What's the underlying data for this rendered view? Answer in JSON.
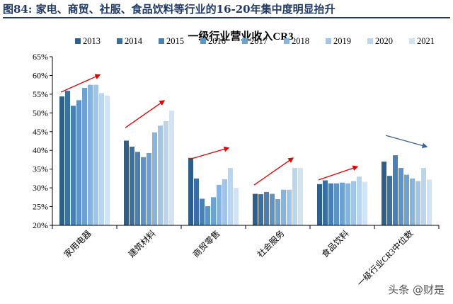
{
  "figure_title": "图84: 家电、商贸、社服、食品饮料等行业的16-20年集中度明显抬升",
  "watermark": "头条 @财是",
  "colors": [
    "#2e5f8a",
    "#3b6fa0",
    "#4a7fb3",
    "#5e93c5",
    "#6ea2d2",
    "#86b4de",
    "#a2c4e6",
    "#bcd5ee",
    "#d2e3f4"
  ],
  "arrow_color": "#e00000",
  "arrow_color_down": "#3a5f9a",
  "chart_data": {
    "type": "bar",
    "title": "一级行业营业收入CR3",
    "ylim": [
      0.2,
      0.65
    ],
    "yticks": [
      "20%",
      "25%",
      "30%",
      "35%",
      "40%",
      "45%",
      "50%",
      "55%",
      "60%",
      "65%"
    ],
    "legend_position": "top",
    "categories": [
      "家用电器",
      "建筑材料",
      "商贸零售",
      "社会服务",
      "食品饮料",
      "一级行业CR3中位数"
    ],
    "series": [
      {
        "name": "2013",
        "values": [
          0.544,
          0.426,
          0.38,
          0.284,
          0.31,
          0.37
        ]
      },
      {
        "name": "2014",
        "values": [
          0.559,
          0.41,
          0.325,
          0.283,
          0.32,
          0.332
        ]
      },
      {
        "name": "2015",
        "values": [
          0.519,
          0.396,
          0.271,
          0.289,
          0.312,
          0.387
        ]
      },
      {
        "name": "2016",
        "values": [
          0.534,
          0.382,
          0.251,
          0.284,
          0.312,
          0.353
        ]
      },
      {
        "name": "2017",
        "values": [
          0.567,
          0.393,
          0.275,
          0.27,
          0.314,
          0.335
        ]
      },
      {
        "name": "2018",
        "values": [
          0.575,
          0.448,
          0.308,
          0.295,
          0.312,
          0.325
        ]
      },
      {
        "name": "2019",
        "values": [
          0.575,
          0.466,
          0.323,
          0.295,
          0.318,
          0.318
        ]
      },
      {
        "name": "2020",
        "values": [
          0.553,
          0.478,
          0.353,
          0.353,
          0.33,
          0.353
        ]
      },
      {
        "name": "2021",
        "values": [
          0.546,
          0.506,
          0.3,
          0.353,
          0.316,
          0.322
        ]
      }
    ],
    "trend_arrows": [
      {
        "category": "家用电器",
        "direction": "up"
      },
      {
        "category": "建筑材料",
        "direction": "up"
      },
      {
        "category": "商贸零售",
        "direction": "up"
      },
      {
        "category": "社会服务",
        "direction": "up"
      },
      {
        "category": "食品饮料",
        "direction": "up"
      },
      {
        "category": "一级行业CR3中位数",
        "direction": "down"
      }
    ]
  }
}
